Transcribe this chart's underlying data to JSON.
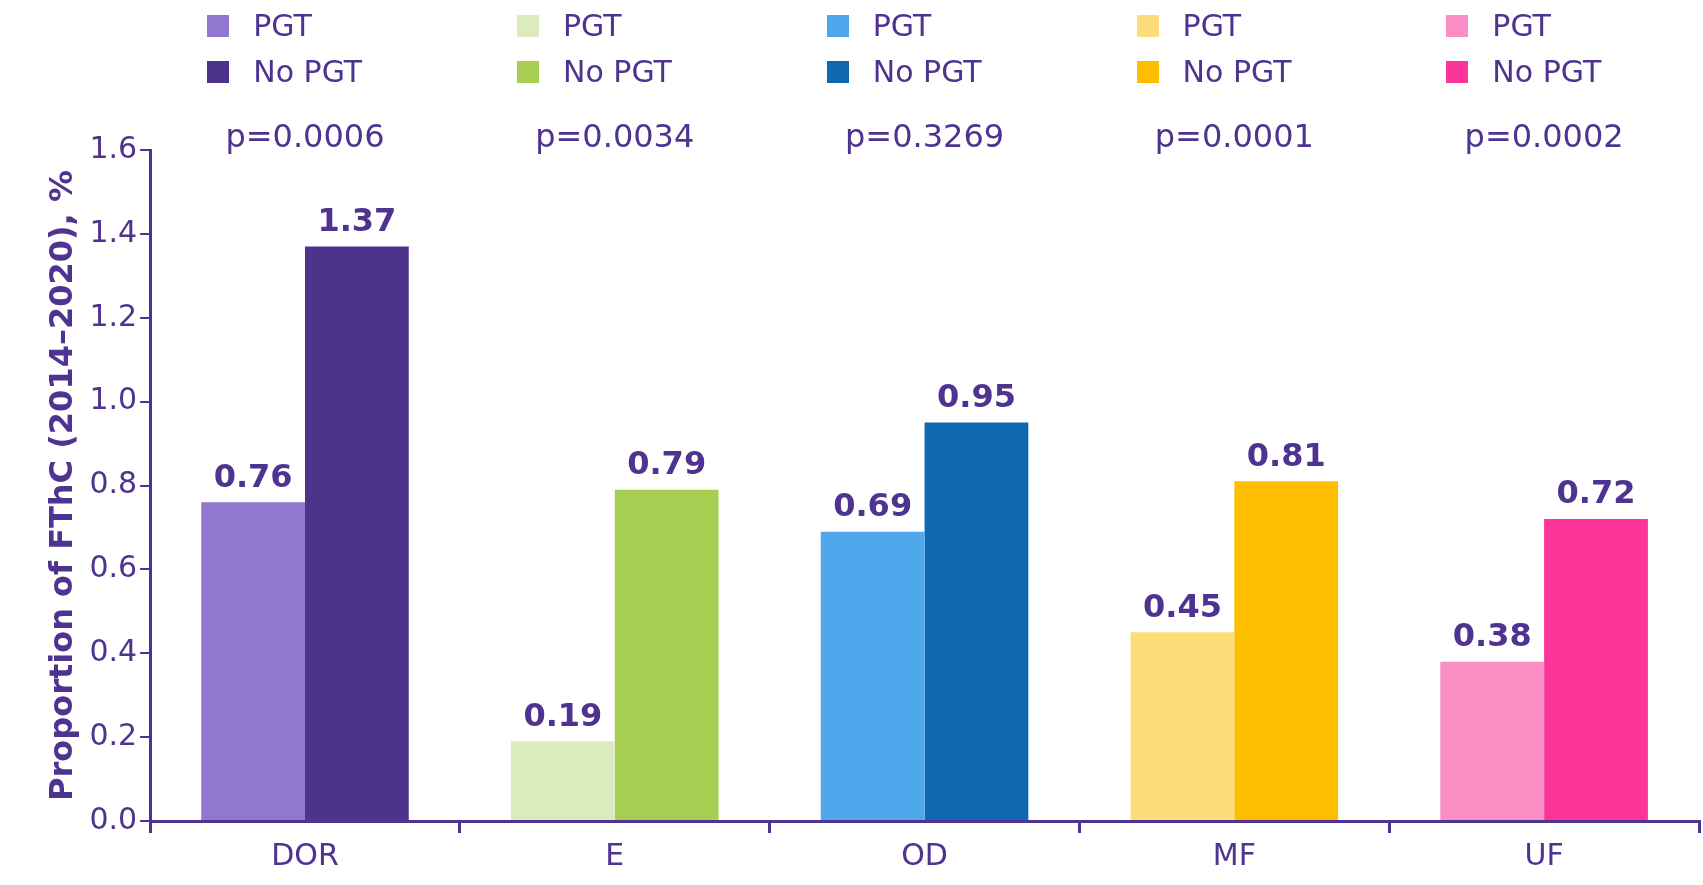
{
  "chart_data": {
    "type": "bar",
    "ylabel": "Proportion of FThC (2014–2020), %",
    "categories": [
      "DOR",
      "E",
      "OD",
      "MF",
      "UF"
    ],
    "series": [
      {
        "name": "PGT",
        "colors": [
          "#9177cf",
          "#dcebbd",
          "#4fa8ec",
          "#fcdd7a",
          "#fb8ec4"
        ],
        "values": [
          0.76,
          0.19,
          0.69,
          0.45,
          0.38
        ]
      },
      {
        "name": "No PGT",
        "colors": [
          "#4e338c",
          "#a6ce51",
          "#0f69b0",
          "#fdbe00",
          "#fd349a"
        ],
        "values": [
          1.37,
          0.79,
          0.95,
          0.81,
          0.72
        ]
      }
    ],
    "ylim": [
      0,
      1.6
    ],
    "yticks": [
      {
        "value": 0,
        "label": "0.0"
      },
      {
        "value": 0.2,
        "label": "0.2"
      },
      {
        "value": 0.4,
        "label": "0.4"
      },
      {
        "value": 0.6,
        "label": "0.6"
      },
      {
        "value": 0.8,
        "label": "0.8"
      },
      {
        "value": 1,
        "label": "1.0"
      },
      {
        "value": 1.2,
        "label": "1.2"
      },
      {
        "value": 1.4,
        "label": "1.4"
      },
      {
        "value": 1.6,
        "label": "1.6"
      }
    ],
    "data_labels": true,
    "legend": "top",
    "grid": false,
    "annotations": [
      "p=0.0006",
      "p=0.0034",
      "p=0.3269",
      "p=0.0001",
      "p=0.0002"
    ]
  }
}
